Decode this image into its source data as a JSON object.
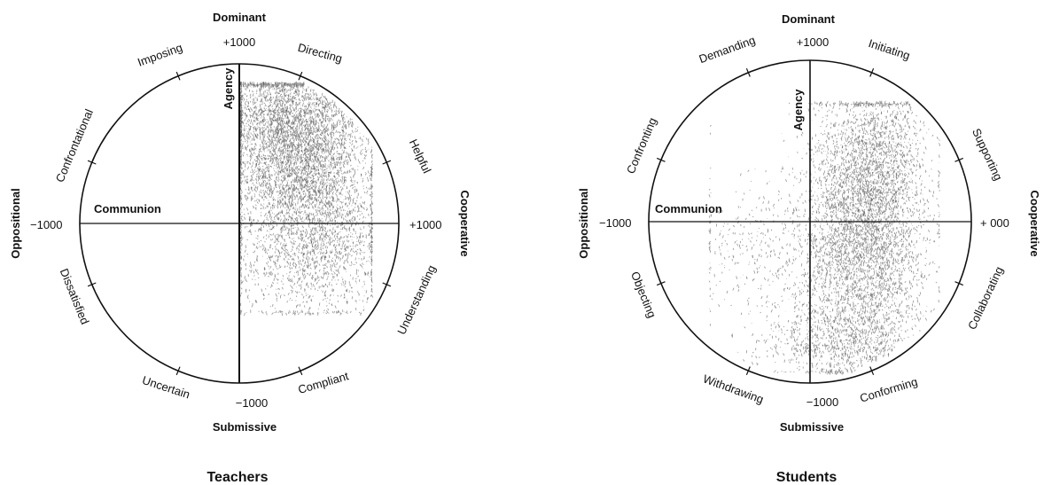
{
  "chart_data": [
    {
      "type": "scatter",
      "caption": "Teachers",
      "xlim": [
        -1000,
        1000
      ],
      "ylim": [
        -1000,
        1000
      ],
      "grid": false,
      "axes": {
        "top": "Dominant",
        "bottom": "Submissive",
        "left": "Oppositional",
        "right": "Cooperative",
        "vertical_axis": "Agency",
        "horizontal_axis": "Communion"
      },
      "ticks": {
        "top": "+1000",
        "bottom": "−1000",
        "left": "−1000",
        "right": "+1000"
      },
      "octants": [
        "Directing",
        "Helpful",
        "Understanding",
        "Compliant",
        "Uncertain",
        "Dissatisfied",
        "Confrontational",
        "Imposing"
      ],
      "point_color": "#3a3a3a",
      "clusters": [
        {
          "cx": 320,
          "cy": 520,
          "sx": 200,
          "sy": 260,
          "n": 3200
        },
        {
          "cx": 500,
          "cy": 150,
          "sx": 220,
          "sy": 300,
          "n": 1900
        },
        {
          "cx": 250,
          "cy": 700,
          "sx": 260,
          "sy": 130,
          "n": 700
        },
        {
          "cx": 450,
          "cy": -220,
          "sx": 260,
          "sy": 220,
          "n": 900
        }
      ],
      "x_range": [
        10,
        830
      ],
      "y_range": [
        -560,
        870
      ]
    },
    {
      "type": "scatter",
      "caption": "Students",
      "xlim": [
        -1000,
        1000
      ],
      "ylim": [
        -1000,
        1000
      ],
      "grid": false,
      "axes": {
        "top": "Dominant",
        "bottom": "Submissive",
        "left": "Oppositional",
        "right": "Cooperative",
        "vertical_axis": "Agency",
        "horizontal_axis": "Communion"
      },
      "ticks": {
        "top": "+1000",
        "bottom": "−1000",
        "left": "−1000",
        "right": "+ 000"
      },
      "octants": [
        "Initiating",
        "Supporting",
        "Collaborating",
        "Conforming",
        "Withdrawing",
        "Objecting",
        "Confronting",
        "Demanding"
      ],
      "point_color": "#3a3a3a",
      "clusters": [
        {
          "cx": 330,
          "cy": -150,
          "sx": 190,
          "sy": 380,
          "n": 3600
        },
        {
          "cx": 400,
          "cy": 350,
          "sx": 170,
          "sy": 260,
          "n": 1600
        },
        {
          "cx": 150,
          "cy": -760,
          "sx": 230,
          "sy": 100,
          "n": 700
        },
        {
          "cx": -260,
          "cy": -180,
          "sx": 260,
          "sy": 230,
          "n": 450
        }
      ],
      "x_range": [
        -620,
        800
      ],
      "y_range": [
        -930,
        730
      ]
    }
  ]
}
